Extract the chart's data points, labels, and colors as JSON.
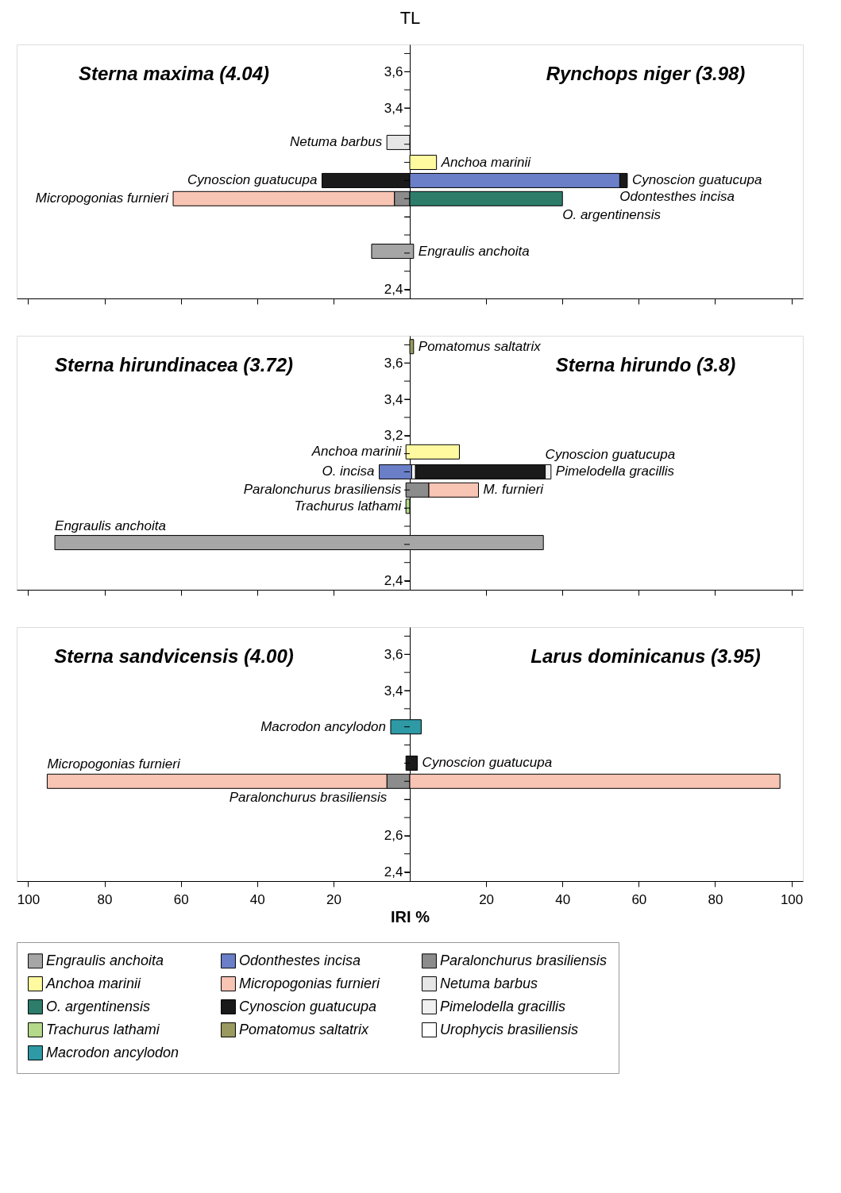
{
  "chart_data": [
    {
      "type": "bar",
      "orientation": "horizontal",
      "ylabel": "TL",
      "xlim": [
        -103,
        103
      ],
      "ylim": [
        2.35,
        3.75
      ],
      "tick_labels": "y",
      "grid": false,
      "xticks": [
        {
          "value": -100,
          "label": null
        },
        {
          "value": -80,
          "label": null
        },
        {
          "value": -60,
          "label": null
        },
        {
          "value": -40,
          "label": null
        },
        {
          "value": -20,
          "label": null
        },
        {
          "value": 20,
          "label": null
        },
        {
          "value": 40,
          "label": null
        },
        {
          "value": 60,
          "label": null
        },
        {
          "value": 80,
          "label": null
        },
        {
          "value": 100,
          "label": null
        }
      ],
      "yticks": [
        {
          "value": 2.4,
          "label": "2,4"
        },
        {
          "value": 2.5,
          "label": null
        },
        {
          "value": 2.6,
          "label": null
        },
        {
          "value": 2.7,
          "label": null
        },
        {
          "value": 2.8,
          "label": null
        },
        {
          "value": 2.9,
          "label": null
        },
        {
          "value": 3.0,
          "label": null
        },
        {
          "value": 3.1,
          "label": null
        },
        {
          "value": 3.2,
          "label": null
        },
        {
          "value": 3.3,
          "label": null
        },
        {
          "value": 3.4,
          "label": "3,4"
        },
        {
          "value": 3.5,
          "label": null
        },
        {
          "value": 3.6,
          "label": "3,6"
        },
        {
          "value": 3.7,
          "label": null
        }
      ],
      "series": [
        {
          "color": "#e6e6e6",
          "x": [
            3.21
          ],
          "values": [
            -6
          ],
          "base": [
            0
          ]
        },
        {
          "color": "#fffaa0",
          "x": [
            3.1
          ],
          "values": [
            7
          ],
          "base": [
            0
          ]
        },
        {
          "color": "#1a1a1a",
          "x": [
            3.0,
            3.0
          ],
          "values": [
            -23,
            2
          ],
          "base": [
            0,
            55
          ]
        },
        {
          "color": "#6a7fc8",
          "x": [
            3.0
          ],
          "values": [
            55
          ],
          "base": [
            0
          ]
        },
        {
          "color": "#f8c4b4",
          "x": [
            2.9
          ],
          "values": [
            -58
          ],
          "base": [
            -4
          ]
        },
        {
          "color": "#8c8c8c",
          "x": [
            2.9
          ],
          "values": [
            -4
          ],
          "base": [
            0
          ]
        },
        {
          "color": "#2e7d6b",
          "x": [
            2.9
          ],
          "values": [
            40
          ],
          "base": [
            0
          ]
        },
        {
          "color": "#a6a6a6",
          "x": [
            2.61
          ],
          "values": [
            11
          ],
          "base": [
            -10
          ]
        }
      ],
      "annotations": [
        "Sterna maxima (4.04)",
        "Rynchops niger (3.98)",
        {
          "text": "Netuma barbus",
          "x": -6,
          "y": 3.21
        },
        {
          "text": "Anchoa marinii",
          "x": 7,
          "y": 3.1
        },
        {
          "text": "Cynoscion guatucupa",
          "x": -23,
          "y": 3.0
        },
        {
          "text": "Cynoscion guatucupa",
          "x": 57,
          "y": 3.0
        },
        {
          "text": "Odontesthes incisa",
          "x": 55,
          "y": 3.0
        },
        {
          "text": "Micropogonias furnieri",
          "x": -62,
          "y": 2.9
        },
        {
          "text": "O.  argentinensis",
          "x": 40,
          "y": 2.9
        },
        {
          "text": "Engraulis anchoita",
          "x": 1,
          "y": 2.61
        }
      ]
    },
    {
      "type": "bar",
      "orientation": "horizontal",
      "xlim": [
        -103,
        103
      ],
      "ylim": [
        2.35,
        3.75
      ],
      "tick_labels": "y",
      "grid": false,
      "xticks": [
        {
          "value": -100,
          "label": null
        },
        {
          "value": -80,
          "label": null
        },
        {
          "value": -60,
          "label": null
        },
        {
          "value": -40,
          "label": null
        },
        {
          "value": -20,
          "label": null
        },
        {
          "value": 20,
          "label": null
        },
        {
          "value": 40,
          "label": null
        },
        {
          "value": 60,
          "label": null
        },
        {
          "value": 80,
          "label": null
        },
        {
          "value": 100,
          "label": null
        }
      ],
      "yticks": [
        {
          "value": 2.4,
          "label": "2,4"
        },
        {
          "value": 2.5,
          "label": null
        },
        {
          "value": 2.6,
          "label": null
        },
        {
          "value": 2.7,
          "label": null
        },
        {
          "value": 2.8,
          "label": null
        },
        {
          "value": 2.9,
          "label": null
        },
        {
          "value": 3.0,
          "label": null
        },
        {
          "value": 3.1,
          "label": null
        },
        {
          "value": 3.2,
          "label": "3,2"
        },
        {
          "value": 3.3,
          "label": null
        },
        {
          "value": 3.4,
          "label": "3,4"
        },
        {
          "value": 3.5,
          "label": null
        },
        {
          "value": 3.6,
          "label": "3,6"
        },
        {
          "value": 3.7,
          "label": null
        }
      ],
      "series": [
        {
          "color": "#9a9a60",
          "x": [
            3.69
          ],
          "values": [
            1
          ],
          "base": [
            0
          ]
        },
        {
          "color": "#fffaa0",
          "x": [
            3.11
          ],
          "values": [
            14
          ],
          "base": [
            -1
          ]
        },
        {
          "color": "#6a7fc8",
          "x": [
            3.0
          ],
          "values": [
            8.5
          ],
          "base": [
            -8
          ]
        },
        {
          "color": "#ffffff",
          "x": [
            3.0
          ],
          "values": [
            1
          ],
          "base": [
            0.5
          ]
        },
        {
          "color": "#1a1a1a",
          "x": [
            3.0
          ],
          "values": [
            34
          ],
          "base": [
            1.5
          ]
        },
        {
          "color": "#f0f0f0",
          "x": [
            3.0
          ],
          "values": [
            1.5
          ],
          "base": [
            35.5
          ]
        },
        {
          "color": "#8c8c8c",
          "x": [
            2.9
          ],
          "values": [
            6
          ],
          "base": [
            -1
          ]
        },
        {
          "color": "#f8c4b4",
          "x": [
            2.9
          ],
          "values": [
            13
          ],
          "base": [
            5
          ]
        },
        {
          "color": "#b5d98a",
          "x": [
            2.81
          ],
          "values": [
            1
          ],
          "base": [
            -1
          ]
        },
        {
          "color": "#a6a6a6",
          "x": [
            2.61
          ],
          "values": [
            128
          ],
          "base": [
            -93
          ]
        }
      ],
      "annotations": [
        "Sterna hirundinacea (3.72)",
        "Sterna hirundo (3.8)",
        {
          "text": "Pomatomus saltatrix",
          "x": 1,
          "y": 3.69
        },
        {
          "text": "Anchoa marinii",
          "x": -1,
          "y": 3.11
        },
        {
          "text": "O. incisa",
          "x": -8,
          "y": 3.0
        },
        {
          "text": "Pimelodella gracillis",
          "x": 37,
          "y": 3.0
        },
        {
          "text": "M. furnieri",
          "x": 18,
          "y": 2.9
        },
        {
          "text": "Cynoscion guatucupa",
          "x": 35.5,
          "y": 3.0
        },
        {
          "text": "Paralonchurus brasiliensis",
          "x": -1,
          "y": 2.9
        },
        {
          "text": "Trachurus lathami",
          "x": -1,
          "y": 2.81
        },
        {
          "text": "Engraulis anchoita",
          "x": -93,
          "y": 2.61
        }
      ]
    },
    {
      "type": "bar",
      "orientation": "horizontal",
      "xlabel": "IRI %",
      "xlim": [
        -103,
        103
      ],
      "ylim": [
        2.35,
        3.75
      ],
      "grid": false,
      "legend": "bottom",
      "xticks": [
        {
          "value": -100,
          "label": "100"
        },
        {
          "value": -80,
          "label": "80"
        },
        {
          "value": -60,
          "label": "60"
        },
        {
          "value": -40,
          "label": "40"
        },
        {
          "value": -20,
          "label": "20"
        },
        20,
        40,
        60,
        80,
        100
      ],
      "yticks": [
        {
          "value": 2.4,
          "label": "2,4"
        },
        {
          "value": 2.5,
          "label": null
        },
        {
          "value": 2.6,
          "label": "2,6"
        },
        {
          "value": 2.7,
          "label": null
        },
        {
          "value": 2.8,
          "label": null
        },
        {
          "value": 2.9,
          "label": null
        },
        {
          "value": 3.0,
          "label": null
        },
        {
          "value": 3.1,
          "label": null
        },
        {
          "value": 3.2,
          "label": null
        },
        {
          "value": 3.3,
          "label": null
        },
        {
          "value": 3.4,
          "label": "3,4"
        },
        {
          "value": 3.5,
          "label": null
        },
        {
          "value": 3.6,
          "label": "3,6"
        },
        {
          "value": 3.7,
          "label": null
        }
      ],
      "series": [
        {
          "name": "Engraulis anchoita",
          "color": "#a6a6a6"
        },
        {
          "name": "Odonthestes incisa",
          "color": "#6a7fc8"
        },
        {
          "name": "Paralonchurus brasiliensis",
          "color": "#8c8c8c",
          "x": [
            2.9
          ],
          "values": [
            6
          ],
          "base": [
            -6
          ]
        },
        {
          "name": "Anchoa marinii",
          "color": "#fffaa0"
        },
        {
          "name": "Micropogonias furnieri",
          "color": "#f8c4b4",
          "x": [
            2.9,
            2.9
          ],
          "values": [
            -89,
            97
          ],
          "base": [
            -6,
            0
          ]
        },
        {
          "name": "Netuma barbus",
          "color": "#e6e6e6"
        },
        {
          "name": "O. argentinensis",
          "color": "#2e7d6b"
        },
        {
          "name": "Cynoscion guatucupa",
          "color": "#1a1a1a",
          "x": [
            3.0
          ],
          "values": [
            3
          ],
          "base": [
            -1
          ]
        },
        {
          "name": "Pimelodella gracillis",
          "color": "#f0f0f0"
        },
        {
          "name": "Trachurus lathami",
          "color": "#b5d98a"
        },
        {
          "name": "Pomatomus saltatrix",
          "color": "#9a9a60"
        },
        {
          "name": "Urophycis brasiliensis",
          "color": "#ffffff"
        },
        {
          "name": "Macrodon ancylodon",
          "color": "#2e9aa5",
          "x": [
            3.2
          ],
          "values": [
            8
          ],
          "base": [
            -5
          ]
        }
      ],
      "annotations": [
        "Sterna sandvicensis (4.00)",
        "Larus dominicanus (3.95)",
        {
          "text": "Macrodon ancylodon",
          "x": -5,
          "y": 3.2
        },
        {
          "text": "Cynoscion guatucupa",
          "x": 2,
          "y": 3.0
        },
        {
          "text": "Micropogonias furnieri",
          "x": -95,
          "y": 2.9
        },
        {
          "text": "Paralonchurus brasiliensis",
          "x": -6,
          "y": 2.9
        }
      ]
    }
  ]
}
